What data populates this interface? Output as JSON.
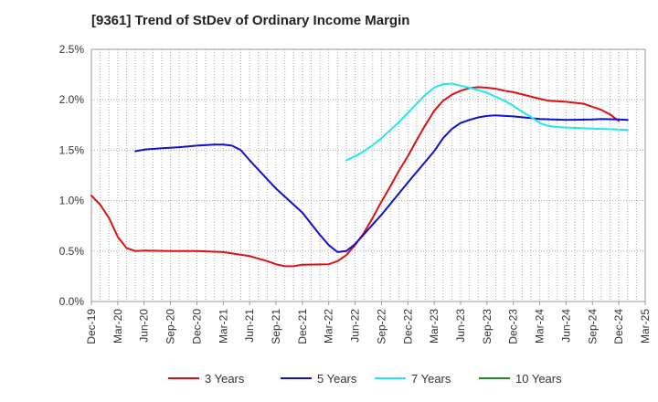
{
  "chart_data": {
    "type": "line",
    "title": "[9361]  Trend of StDev of Ordinary Income Margin",
    "xlabel": "",
    "ylabel": "",
    "x_ticks": [
      "Dec-19",
      "Mar-20",
      "Jun-20",
      "Sep-20",
      "Dec-20",
      "Mar-21",
      "Jun-21",
      "Sep-21",
      "Dec-21",
      "Mar-22",
      "Jun-22",
      "Sep-22",
      "Dec-22",
      "Mar-23",
      "Jun-23",
      "Sep-23",
      "Dec-23",
      "Mar-24",
      "Jun-24",
      "Sep-24",
      "Dec-24",
      "Mar-25"
    ],
    "y_ticks": [
      "0.0%",
      "0.5%",
      "1.0%",
      "1.5%",
      "2.0%",
      "2.5%"
    ],
    "ylim": [
      0,
      2.5
    ],
    "y_unit": "%",
    "grid": true,
    "legend_position": "bottom",
    "series": [
      {
        "name": "3 Years",
        "color": "#dd1111",
        "points": [
          [
            "Dec-19",
            1.05
          ],
          [
            "Jan-20",
            0.96
          ],
          [
            "Feb-20",
            0.83
          ],
          [
            "Mar-20",
            0.64
          ],
          [
            "Apr-20",
            0.53
          ],
          [
            "May-20",
            0.5
          ],
          [
            "Jun-20",
            0.505
          ],
          [
            "Sep-20",
            0.5
          ],
          [
            "Dec-20",
            0.5
          ],
          [
            "Mar-21",
            0.49
          ],
          [
            "Jun-21",
            0.45
          ],
          [
            "Aug-21",
            0.4
          ],
          [
            "Sep-21",
            0.37
          ],
          [
            "Oct-21",
            0.35
          ],
          [
            "Nov-21",
            0.35
          ],
          [
            "Dec-21",
            0.365
          ],
          [
            "Mar-22",
            0.37
          ],
          [
            "Apr-22",
            0.4
          ],
          [
            "May-22",
            0.46
          ],
          [
            "Jun-22",
            0.56
          ],
          [
            "Jul-22",
            0.68
          ],
          [
            "Aug-22",
            0.83
          ],
          [
            "Sep-22",
            0.99
          ],
          [
            "Oct-22",
            1.14
          ],
          [
            "Nov-22",
            1.3
          ],
          [
            "Dec-22",
            1.44
          ],
          [
            "Jan-23",
            1.6
          ],
          [
            "Feb-23",
            1.75
          ],
          [
            "Mar-23",
            1.89
          ],
          [
            "Apr-23",
            1.99
          ],
          [
            "May-23",
            2.05
          ],
          [
            "Jun-23",
            2.09
          ],
          [
            "Jul-23",
            2.115
          ],
          [
            "Aug-23",
            2.125
          ],
          [
            "Sep-23",
            2.12
          ],
          [
            "Oct-23",
            2.11
          ],
          [
            "Nov-23",
            2.09
          ],
          [
            "Dec-23",
            2.075
          ],
          [
            "Mar-24",
            2.01
          ],
          [
            "Apr-24",
            1.99
          ],
          [
            "Jun-24",
            1.98
          ],
          [
            "Aug-24",
            1.96
          ],
          [
            "Sep-24",
            1.93
          ],
          [
            "Oct-24",
            1.9
          ],
          [
            "Nov-24",
            1.855
          ],
          [
            "Dec-24",
            1.79
          ]
        ]
      },
      {
        "name": "5 Years",
        "color": "#1111cc",
        "points": [
          [
            "May-20",
            1.49
          ],
          [
            "Jun-20",
            1.505
          ],
          [
            "Aug-20",
            1.52
          ],
          [
            "Oct-20",
            1.53
          ],
          [
            "Dec-20",
            1.545
          ],
          [
            "Feb-21",
            1.555
          ],
          [
            "Mar-21",
            1.555
          ],
          [
            "Apr-21",
            1.545
          ],
          [
            "May-21",
            1.5
          ],
          [
            "Jun-21",
            1.4
          ],
          [
            "Sep-21",
            1.12
          ],
          [
            "Dec-21",
            0.88
          ],
          [
            "Jan-22",
            0.77
          ],
          [
            "Feb-22",
            0.66
          ],
          [
            "Mar-22",
            0.56
          ],
          [
            "Apr-22",
            0.49
          ],
          [
            "May-22",
            0.5
          ],
          [
            "Jun-22",
            0.57
          ],
          [
            "Sep-22",
            0.86
          ],
          [
            "Dec-22",
            1.18
          ],
          [
            "Mar-23",
            1.49
          ],
          [
            "Apr-23",
            1.62
          ],
          [
            "May-23",
            1.71
          ],
          [
            "Jun-23",
            1.77
          ],
          [
            "Jul-23",
            1.8
          ],
          [
            "Aug-23",
            1.825
          ],
          [
            "Sep-23",
            1.84
          ],
          [
            "Oct-23",
            1.845
          ],
          [
            "Nov-23",
            1.84
          ],
          [
            "Dec-23",
            1.835
          ],
          [
            "Mar-24",
            1.81
          ],
          [
            "Jun-24",
            1.8
          ],
          [
            "Sep-24",
            1.805
          ],
          [
            "Oct-24",
            1.81
          ],
          [
            "Dec-24",
            1.805
          ],
          [
            "Jan-25",
            1.8
          ]
        ]
      },
      {
        "name": "7 Years",
        "color": "#22e6f0",
        "points": [
          [
            "May-22",
            1.4
          ],
          [
            "Jun-22",
            1.44
          ],
          [
            "Jul-22",
            1.49
          ],
          [
            "Aug-22",
            1.55
          ],
          [
            "Sep-22",
            1.62
          ],
          [
            "Oct-22",
            1.7
          ],
          [
            "Nov-22",
            1.78
          ],
          [
            "Dec-22",
            1.87
          ],
          [
            "Jan-23",
            1.96
          ],
          [
            "Feb-23",
            2.05
          ],
          [
            "Mar-23",
            2.12
          ],
          [
            "Apr-23",
            2.155
          ],
          [
            "May-23",
            2.16
          ],
          [
            "Jun-23",
            2.14
          ],
          [
            "Jul-23",
            2.12
          ],
          [
            "Sep-23",
            2.07
          ],
          [
            "Oct-23",
            2.03
          ],
          [
            "Nov-23",
            1.99
          ],
          [
            "Dec-23",
            1.94
          ],
          [
            "Jan-24",
            1.88
          ],
          [
            "Feb-24",
            1.83
          ],
          [
            "Mar-24",
            1.77
          ],
          [
            "Apr-24",
            1.74
          ],
          [
            "May-24",
            1.73
          ],
          [
            "Jun-24",
            1.725
          ],
          [
            "Sep-24",
            1.715
          ],
          [
            "Dec-24",
            1.705
          ],
          [
            "Jan-25",
            1.7
          ]
        ]
      },
      {
        "name": "10 Years",
        "color": "#228822",
        "points": []
      }
    ]
  }
}
